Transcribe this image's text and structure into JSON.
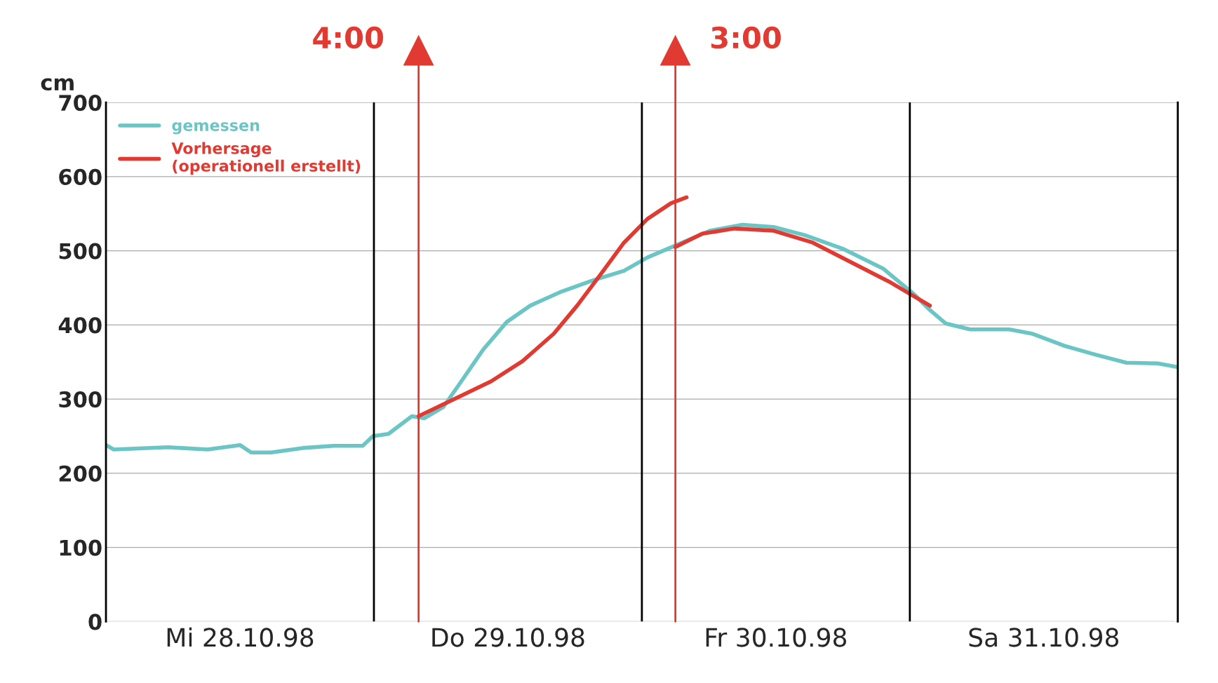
{
  "chart_data": {
    "type": "line",
    "ylabel": "cm",
    "xlim": [
      "1998-10-28T00:00",
      "1998-11-01T00:00"
    ],
    "ylim": [
      0,
      700
    ],
    "yticks": [
      0,
      100,
      200,
      300,
      400,
      500,
      600,
      700
    ],
    "xticks": [
      {
        "value": "1998-10-28T00:00",
        "label": null
      },
      {
        "value": "1998-10-28T12:00",
        "label": "Mi 28.10.98"
      },
      {
        "value": "1998-10-29T00:00",
        "label": null
      },
      {
        "value": "1998-10-29T12:00",
        "label": "Do 29.10.98"
      },
      {
        "value": "1998-10-30T00:00",
        "label": null
      },
      {
        "value": "1998-10-30T12:00",
        "label": "Fr 30.10.98"
      },
      {
        "value": "1998-10-31T00:00",
        "label": null
      },
      {
        "value": "1998-10-31T12:00",
        "label": "Sa 31.10.98"
      },
      {
        "value": "1998-11-01T00:00",
        "label": null
      }
    ],
    "grid": "y",
    "legend": "top left",
    "series": [
      {
        "name": "gemessen",
        "color": "#6cc5c5",
        "x": [
          "1998-10-28T00:00",
          "1998-10-28T00:42",
          "1998-10-28T05:36",
          "1998-10-28T09:06",
          "1998-10-28T12:00",
          "1998-10-28T13:00",
          "1998-10-28T14:48",
          "1998-10-28T17:36",
          "1998-10-28T20:24",
          "1998-10-28T23:00",
          "1998-10-28T23:54",
          "1998-10-29T01:18",
          "1998-10-29T03:24",
          "1998-10-29T04:30",
          "1998-10-29T06:12",
          "1998-10-29T07:36",
          "1998-10-29T09:48",
          "1998-10-29T11:54",
          "1998-10-29T14:00",
          "1998-10-29T16:48",
          "1998-10-29T19:36",
          "1998-10-29T22:24",
          "1998-10-30T00:30",
          "1998-10-30T03:18",
          "1998-10-30T06:06",
          "1998-10-30T09:00",
          "1998-10-30T11:48",
          "1998-10-30T14:36",
          "1998-10-30T18:06",
          "1998-10-30T21:36",
          "1998-10-31T00:24",
          "1998-10-31T01:48",
          "1998-10-31T03:12",
          "1998-10-31T05:24",
          "1998-10-31T08:54",
          "1998-10-31T11:00",
          "1998-10-31T13:48",
          "1998-10-31T16:36",
          "1998-10-31T19:24",
          "1998-10-31T22:12",
          "1998-11-01T00:00"
        ],
        "values": [
          238,
          232,
          235,
          232,
          238,
          228,
          228,
          234,
          237,
          237,
          250,
          253,
          277,
          274,
          289,
          319,
          367,
          404,
          426,
          445,
          460,
          473,
          491,
          509,
          527,
          535,
          532,
          521,
          502,
          476,
          441,
          420,
          402,
          394,
          394,
          388,
          372,
          360,
          349,
          348,
          343
        ]
      },
      {
        "name": "Vorhersage\n(operationell erstellt)",
        "color": "#e03a32",
        "x": [
          "1998-10-29T04:00",
          "1998-10-29T07:36",
          "1998-10-29T10:30",
          "1998-10-29T13:18",
          "1998-10-29T16:06",
          "1998-10-29T18:12",
          "1998-10-29T20:18",
          "1998-10-29T22:24",
          "1998-10-30T00:30",
          "1998-10-30T02:36",
          "1998-10-30T04:00"
        ],
        "values": [
          277,
          303,
          324,
          351,
          388,
          426,
          468,
          511,
          543,
          564,
          572
        ]
      },
      {
        "color": "#e03a32",
        "x": [
          "1998-10-30T03:00",
          "1998-10-30T05:24",
          "1998-10-30T08:18",
          "1998-10-30T11:48",
          "1998-10-30T15:18",
          "1998-10-30T18:48",
          "1998-10-30T22:18",
          "1998-10-31T01:48"
        ],
        "values": [
          505,
          523,
          530,
          527,
          511,
          484,
          457,
          426
        ]
      }
    ],
    "ref_lines": [
      {
        "axis": "x",
        "value": "1998-10-29T00:00",
        "color": "#000000"
      },
      {
        "axis": "x",
        "value": "1998-10-30T00:00",
        "color": "#000000"
      },
      {
        "axis": "x",
        "value": "1998-10-31T00:00",
        "color": "#000000"
      },
      {
        "axis": "x",
        "value": "1998-10-29T04:00",
        "label": "4:00",
        "color": "#e03a32"
      },
      {
        "axis": "x",
        "value": "1998-10-30T03:00",
        "label": "3:00",
        "color": "#e03a32"
      }
    ]
  }
}
